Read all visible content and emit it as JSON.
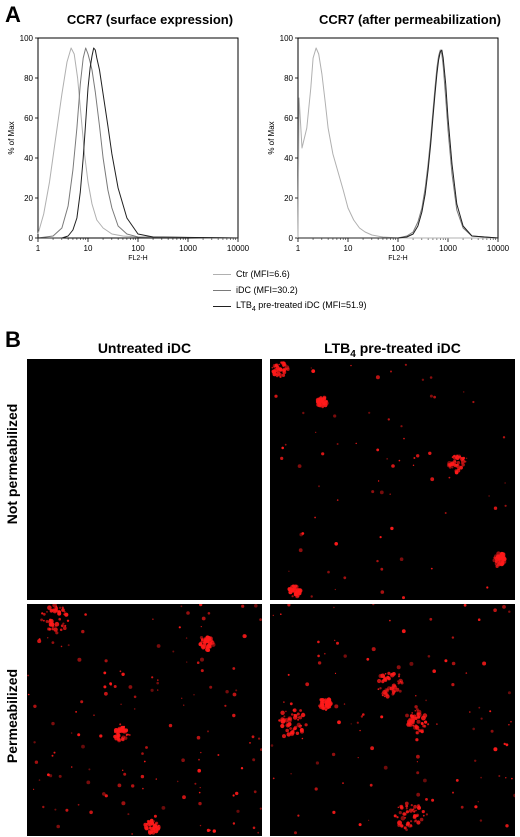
{
  "panel_a": {
    "letter": "A"
  },
  "panel_b": {
    "letter": "B"
  },
  "chart_data": [
    {
      "type": "line",
      "title": "CCR7 (surface expression)",
      "xlabel": "FL2-H",
      "ylabel": "% of Max",
      "x_scale": "log",
      "xlim": [
        1,
        10000
      ],
      "ylim": [
        0,
        100
      ],
      "x_ticks": [
        "1",
        "10",
        "100",
        "1000",
        "10000"
      ],
      "y_ticks": [
        "0",
        "20",
        "40",
        "60",
        "80",
        "100"
      ],
      "series": [
        {
          "name": "Ctr (MFI=6.6)",
          "color": "#b0b0b0",
          "x": [
            1,
            1.3,
            1.7,
            2.2,
            3,
            3.8,
            4.6,
            5.3,
            6.2,
            7.2,
            8.5,
            10,
            12,
            15,
            20,
            30,
            50,
            100,
            10000
          ],
          "y": [
            2,
            12,
            28,
            48,
            72,
            88,
            95,
            92,
            80,
            62,
            42,
            28,
            17,
            9,
            5,
            2,
            1,
            0.5,
            0
          ]
        },
        {
          "name": "iDC (MFI=30.2)",
          "color": "#7a7a7a",
          "x": [
            1,
            2,
            3,
            4,
            5,
            6,
            7,
            8,
            9,
            10,
            11,
            12,
            14,
            17,
            20,
            25,
            30,
            40,
            60,
            100,
            10000
          ],
          "y": [
            0,
            1,
            5,
            16,
            34,
            55,
            77,
            90,
            95,
            92,
            88,
            84,
            73,
            56,
            40,
            24,
            15,
            6,
            2,
            0.5,
            0
          ]
        },
        {
          "name": "LTB4 pre-treated iDC (MFI=51.9)",
          "color": "#202020",
          "x": [
            1,
            3,
            4,
            5,
            6,
            7,
            8,
            9,
            10,
            11,
            12,
            13,
            14,
            15,
            17,
            20,
            25,
            30,
            40,
            60,
            100,
            200,
            10000
          ],
          "y": [
            0,
            0,
            1,
            4,
            10,
            23,
            40,
            58,
            75,
            85,
            91,
            95,
            94,
            90,
            84,
            72,
            56,
            42,
            25,
            10,
            2,
            0.5,
            0
          ]
        }
      ]
    },
    {
      "type": "line",
      "title": "CCR7 (after permeabilization)",
      "xlabel": "FL2-H",
      "ylabel": "% of Max",
      "x_scale": "log",
      "xlim": [
        1,
        10000
      ],
      "ylim": [
        0,
        100
      ],
      "x_ticks": [
        "1",
        "10",
        "100",
        "1000",
        "10000"
      ],
      "y_ticks": [
        "0",
        "20",
        "40",
        "60",
        "80",
        "100"
      ],
      "series": [
        {
          "name": "Ctr (MFI=6.6)",
          "color": "#b0b0b0",
          "x": [
            1,
            1.05,
            1.2,
            1.5,
            1.8,
            2,
            2.3,
            2.6,
            3,
            3.5,
            4,
            5,
            6,
            8,
            10,
            13,
            17,
            22,
            30,
            50,
            100,
            10000
          ],
          "y": [
            0,
            70,
            45,
            55,
            75,
            90,
            95,
            92,
            82,
            68,
            55,
            42,
            35,
            24,
            15,
            9,
            5,
            3,
            1.5,
            0.5,
            0,
            0
          ]
        },
        {
          "name": "iDC (MFI=30.2)",
          "color": "#7a7a7a",
          "x": [
            1,
            100,
            150,
            200,
            250,
            300,
            350,
            400,
            450,
            500,
            550,
            600,
            650,
            700,
            750,
            800,
            900,
            1000,
            1200,
            1500,
            2000,
            3000,
            10000
          ],
          "y": [
            0,
            0,
            1,
            3,
            8,
            15,
            25,
            37,
            50,
            63,
            75,
            85,
            91,
            94,
            92,
            86,
            70,
            54,
            32,
            14,
            5,
            1,
            0
          ]
        },
        {
          "name": "LTB4 pre-treated iDC (MFI=51.9)",
          "color": "#202020",
          "x": [
            1,
            100,
            150,
            200,
            250,
            300,
            350,
            400,
            450,
            500,
            550,
            600,
            650,
            700,
            750,
            800,
            900,
            1000,
            1200,
            1500,
            2000,
            3000,
            10000
          ],
          "y": [
            0,
            0,
            0.5,
            2,
            6,
            13,
            22,
            34,
            47,
            60,
            72,
            82,
            89,
            93,
            94,
            90,
            77,
            60,
            37,
            17,
            6,
            1,
            0
          ]
        }
      ]
    }
  ],
  "legend": [
    {
      "label": "Ctr (MFI=6.6)",
      "color": "#b0b0b0"
    },
    {
      "label": "iDC (MFI=30.2)",
      "color": "#7a7a7a"
    },
    {
      "label_prefix": "LTB",
      "label_sub": "4",
      "label_suffix": " pre-treated iDC (MFI=51.9)",
      "color": "#202020"
    }
  ],
  "micrographs": {
    "col_untreated": "Untreated iDC",
    "col_treated_prefix": "LTB",
    "col_treated_sub": "4",
    "col_treated_suffix": " pre-treated iDC",
    "row_not_perm": "Not permeabilized",
    "row_perm": "Permeabilized",
    "stain_color": "#ff1a1a"
  }
}
